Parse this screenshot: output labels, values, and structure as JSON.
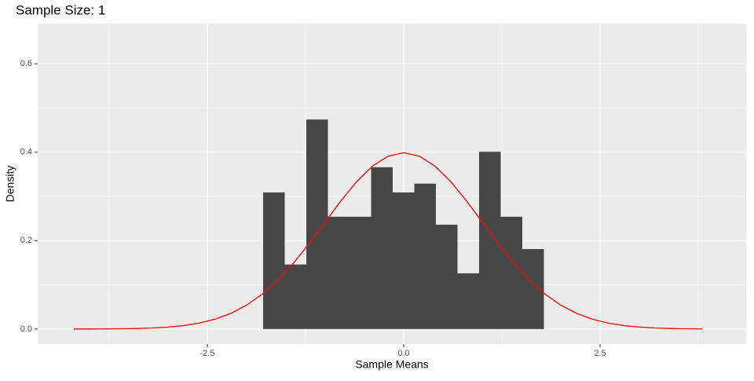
{
  "chart_data": {
    "type": "histogram",
    "title": "Sample Size: 1",
    "x_label": "Sample Means",
    "y_label": "Density",
    "bins": [
      -1.79,
      -1.515,
      -1.24,
      -0.965,
      -0.69,
      -0.415,
      -0.14,
      0.135,
      0.41,
      0.685,
      0.96,
      1.235,
      1.51,
      1.785
    ],
    "values": [
      0.309,
      0.146,
      0.474,
      0.254,
      0.254,
      0.366,
      0.309,
      0.329,
      0.236,
      0.126,
      0.401,
      0.254,
      0.181
    ],
    "color": "#474747",
    "curve": {
      "color": "#ff0000",
      "x": [
        -4.2,
        -4.0,
        -3.8,
        -3.6,
        -3.4,
        -3.2,
        -3.0,
        -2.8,
        -2.6,
        -2.4,
        -2.2,
        -2.0,
        -1.8,
        -1.6,
        -1.4,
        -1.2,
        -1.0,
        -0.8,
        -0.6,
        -0.4,
        -0.2,
        0,
        0.2,
        0.4,
        0.6,
        0.8,
        1.0,
        1.2,
        1.4,
        1.6,
        1.8,
        2.0,
        2.2,
        2.4,
        2.6,
        2.8,
        3.0,
        3.2,
        3.4,
        3.6,
        3.8
      ],
      "y": [
        0.0001,
        0.0001,
        0.0003,
        0.0006,
        0.0012,
        0.0024,
        0.0044,
        0.0079,
        0.0136,
        0.0224,
        0.0355,
        0.054,
        0.079,
        0.1109,
        0.1497,
        0.1942,
        0.242,
        0.2897,
        0.3332,
        0.3683,
        0.391,
        0.3989,
        0.391,
        0.3683,
        0.3332,
        0.2897,
        0.242,
        0.1942,
        0.1497,
        0.1109,
        0.079,
        0.054,
        0.0355,
        0.0224,
        0.0136,
        0.0079,
        0.0044,
        0.0024,
        0.0012,
        0.0006,
        0.0003
      ]
    },
    "xlim": [
      -4.66,
      4.36
    ],
    "ylim": [
      -0.034,
      0.691
    ],
    "xticks": [
      -2.5,
      {
        "value": 0,
        "label": "0.0"
      },
      2.5
    ],
    "yticks": [
      {
        "value": 0,
        "label": "0.0"
      },
      0.2,
      0.4,
      0.6
    ],
    "grid": true
  }
}
